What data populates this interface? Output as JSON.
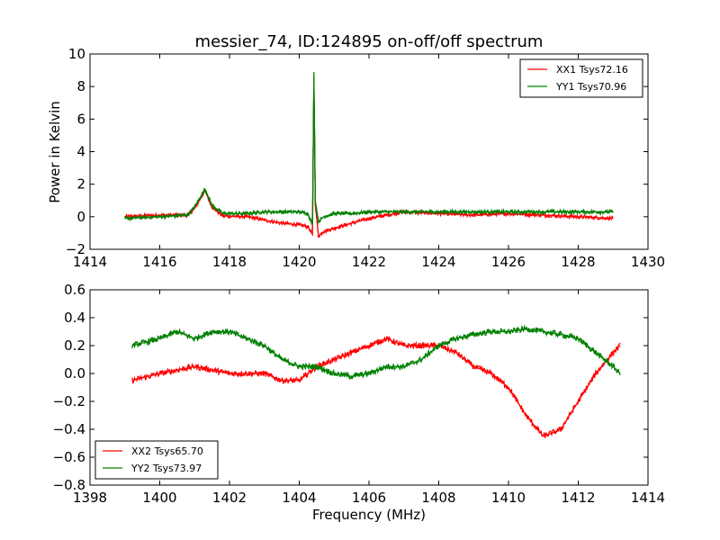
{
  "title": "messier_74, ID:124895 on-off/off spectrum",
  "colors": {
    "red": "#ff0000",
    "green": "#008000"
  },
  "chart_data": [
    {
      "type": "line",
      "xlim": [
        1414,
        1430
      ],
      "ylim": [
        -2,
        10
      ],
      "xticks": [
        "1414",
        "1416",
        "1418",
        "1420",
        "1422",
        "1424",
        "1426",
        "1428",
        "1430"
      ],
      "yticks": [
        "−2",
        "0",
        "2",
        "4",
        "6",
        "8",
        "10"
      ],
      "ylabel": "Power in Kelvin",
      "legend_placement": "top-right",
      "series": [
        {
          "name": "XX1 Tsys72.16",
          "color": "#ff0000",
          "points": [
            [
              1415,
              0.0
            ],
            [
              1416,
              0.1
            ],
            [
              1416.8,
              0.1
            ],
            [
              1417,
              0.5
            ],
            [
              1417.3,
              1.6
            ],
            [
              1417.5,
              0.6
            ],
            [
              1417.8,
              0.05
            ],
            [
              1418.5,
              0.0
            ],
            [
              1419,
              -0.2
            ],
            [
              1419.5,
              -0.4
            ],
            [
              1420,
              -0.5
            ],
            [
              1420.25,
              -0.6
            ],
            [
              1420.38,
              -1.1
            ],
            [
              1420.42,
              8.7
            ],
            [
              1420.46,
              0.8
            ],
            [
              1420.55,
              -1.2
            ],
            [
              1420.7,
              -0.9
            ],
            [
              1421,
              -0.7
            ],
            [
              1421.5,
              -0.4
            ],
            [
              1422,
              -0.1
            ],
            [
              1422.5,
              0.1
            ],
            [
              1423,
              0.3
            ],
            [
              1424,
              0.2
            ],
            [
              1425,
              0.1
            ],
            [
              1426,
              0.2
            ],
            [
              1427,
              0.1
            ],
            [
              1428,
              0.0
            ],
            [
              1429,
              -0.1
            ]
          ]
        },
        {
          "name": "YY1 Tsys70.96",
          "color": "#008000",
          "points": [
            [
              1415,
              -0.1
            ],
            [
              1416,
              0.0
            ],
            [
              1416.8,
              0.1
            ],
            [
              1417,
              0.6
            ],
            [
              1417.3,
              1.7
            ],
            [
              1417.5,
              0.7
            ],
            [
              1417.8,
              0.2
            ],
            [
              1418.5,
              0.2
            ],
            [
              1419,
              0.3
            ],
            [
              1419.5,
              0.3
            ],
            [
              1420,
              0.3
            ],
            [
              1420.25,
              0.2
            ],
            [
              1420.38,
              -0.5
            ],
            [
              1420.42,
              8.9
            ],
            [
              1420.46,
              1.0
            ],
            [
              1420.55,
              -0.3
            ],
            [
              1420.7,
              0.0
            ],
            [
              1421,
              0.2
            ],
            [
              1421.5,
              0.2
            ],
            [
              1422,
              0.3
            ],
            [
              1422.5,
              0.3
            ],
            [
              1423,
              0.3
            ],
            [
              1424,
              0.3
            ],
            [
              1425,
              0.3
            ],
            [
              1426,
              0.3
            ],
            [
              1427,
              0.3
            ],
            [
              1428,
              0.3
            ],
            [
              1429,
              0.3
            ]
          ]
        }
      ]
    },
    {
      "type": "line",
      "xlim": [
        1398,
        1414
      ],
      "ylim": [
        -0.8,
        0.6
      ],
      "xticks": [
        "1398",
        "1400",
        "1402",
        "1404",
        "1406",
        "1408",
        "1410",
        "1412",
        "1414"
      ],
      "yticks": [
        "−0.8",
        "−0.6",
        "−0.4",
        "−0.2",
        "0.0",
        "0.2",
        "0.4",
        "0.6"
      ],
      "xlabel": "Frequency (MHz)",
      "legend_placement": "lower-left",
      "series": [
        {
          "name": "XX2 Tsys65.70",
          "color": "#ff0000",
          "points": [
            [
              1399.2,
              -0.05
            ],
            [
              1400,
              0.0
            ],
            [
              1401,
              0.05
            ],
            [
              1402,
              0.0
            ],
            [
              1403,
              0.0
            ],
            [
              1403.5,
              -0.05
            ],
            [
              1404,
              -0.05
            ],
            [
              1404.5,
              0.05
            ],
            [
              1405,
              0.1
            ],
            [
              1405.5,
              0.15
            ],
            [
              1406,
              0.2
            ],
            [
              1406.5,
              0.25
            ],
            [
              1407,
              0.2
            ],
            [
              1407.5,
              0.2
            ],
            [
              1408,
              0.2
            ],
            [
              1408.5,
              0.15
            ],
            [
              1409,
              0.05
            ],
            [
              1409.5,
              0.0
            ],
            [
              1410,
              -0.1
            ],
            [
              1410.5,
              -0.3
            ],
            [
              1411,
              -0.45
            ],
            [
              1411.5,
              -0.4
            ],
            [
              1412,
              -0.2
            ],
            [
              1412.5,
              0.0
            ],
            [
              1413,
              0.15
            ],
            [
              1413.2,
              0.2
            ]
          ]
        },
        {
          "name": "YY2 Tsys73.97",
          "color": "#008000",
          "points": [
            [
              1399.2,
              0.2
            ],
            [
              1400,
              0.25
            ],
            [
              1400.5,
              0.3
            ],
            [
              1401,
              0.25
            ],
            [
              1401.5,
              0.3
            ],
            [
              1402,
              0.3
            ],
            [
              1402.5,
              0.25
            ],
            [
              1403,
              0.2
            ],
            [
              1403.5,
              0.1
            ],
            [
              1404,
              0.05
            ],
            [
              1404.5,
              0.05
            ],
            [
              1405,
              0.0
            ],
            [
              1405.5,
              -0.02
            ],
            [
              1406,
              0.0
            ],
            [
              1406.5,
              0.05
            ],
            [
              1407,
              0.05
            ],
            [
              1407.5,
              0.1
            ],
            [
              1408,
              0.2
            ],
            [
              1408.5,
              0.25
            ],
            [
              1409,
              0.28
            ],
            [
              1409.5,
              0.3
            ],
            [
              1410,
              0.3
            ],
            [
              1410.5,
              0.32
            ],
            [
              1411,
              0.3
            ],
            [
              1411.5,
              0.28
            ],
            [
              1412,
              0.25
            ],
            [
              1412.5,
              0.15
            ],
            [
              1413,
              0.05
            ],
            [
              1413.2,
              0.0
            ]
          ]
        }
      ]
    }
  ]
}
